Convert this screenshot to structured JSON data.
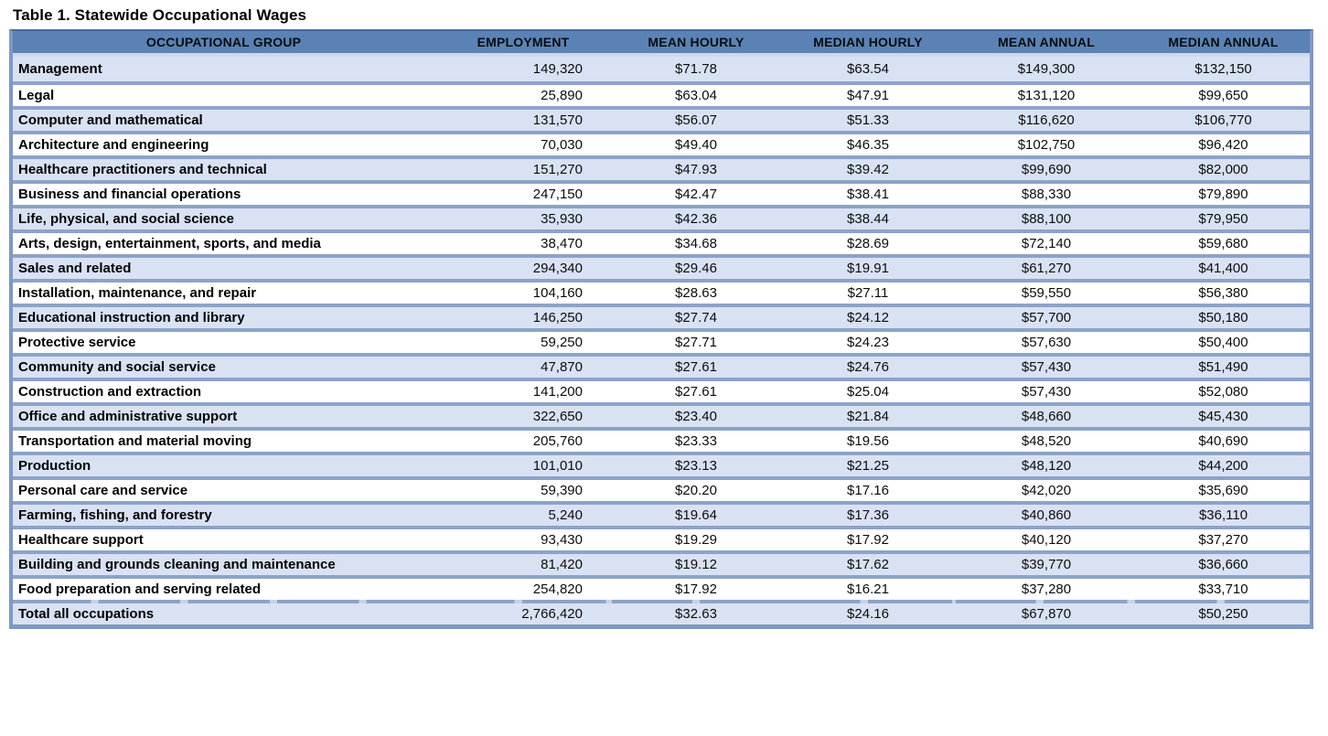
{
  "title": "Table 1. Statewide Occupational Wages",
  "colors": {
    "header_fill": "#5B82B5",
    "header_text": "#0b0b0b",
    "alt_row_fill": "#D9E2F3",
    "row_fill": "#ffffff",
    "separator": "#8CA3C9",
    "outer_border": "#7E99C3"
  },
  "table": {
    "columns": [
      "OCCUPATIONAL GROUP",
      "EMPLOYMENT",
      "MEAN HOURLY",
      "MEDIAN HOURLY",
      "MEAN ANNUAL",
      "MEDIAN ANNUAL"
    ],
    "rows": [
      {
        "label": "Management",
        "employment": "149,320",
        "mean_hourly": "$71.78",
        "median_hourly": "$63.54",
        "mean_annual": "$149,300",
        "median_annual": "$132,150"
      },
      {
        "label": "Legal",
        "employment": "25,890",
        "mean_hourly": "$63.04",
        "median_hourly": "$47.91",
        "mean_annual": "$131,120",
        "median_annual": "$99,650"
      },
      {
        "label": "Computer and mathematical",
        "employment": "131,570",
        "mean_hourly": "$56.07",
        "median_hourly": "$51.33",
        "mean_annual": "$116,620",
        "median_annual": "$106,770"
      },
      {
        "label": "Architecture and engineering",
        "employment": "70,030",
        "mean_hourly": "$49.40",
        "median_hourly": "$46.35",
        "mean_annual": "$102,750",
        "median_annual": "$96,420"
      },
      {
        "label": "Healthcare practitioners and technical",
        "employment": "151,270",
        "mean_hourly": "$47.93",
        "median_hourly": "$39.42",
        "mean_annual": "$99,690",
        "median_annual": "$82,000"
      },
      {
        "label": "Business and financial operations",
        "employment": "247,150",
        "mean_hourly": "$42.47",
        "median_hourly": "$38.41",
        "mean_annual": "$88,330",
        "median_annual": "$79,890"
      },
      {
        "label": "Life, physical, and social science",
        "employment": "35,930",
        "mean_hourly": "$42.36",
        "median_hourly": "$38.44",
        "mean_annual": "$88,100",
        "median_annual": "$79,950"
      },
      {
        "label": "Arts, design, entertainment, sports, and media",
        "employment": "38,470",
        "mean_hourly": "$34.68",
        "median_hourly": "$28.69",
        "mean_annual": "$72,140",
        "median_annual": "$59,680"
      },
      {
        "label": "Sales and related",
        "employment": "294,340",
        "mean_hourly": "$29.46",
        "median_hourly": "$19.91",
        "mean_annual": "$61,270",
        "median_annual": "$41,400"
      },
      {
        "label": "Installation, maintenance, and repair",
        "employment": "104,160",
        "mean_hourly": "$28.63",
        "median_hourly": "$27.11",
        "mean_annual": "$59,550",
        "median_annual": "$56,380"
      },
      {
        "label": "Educational instruction and library",
        "employment": "146,250",
        "mean_hourly": "$27.74",
        "median_hourly": "$24.12",
        "mean_annual": "$57,700",
        "median_annual": "$50,180"
      },
      {
        "label": "Protective service",
        "employment": "59,250",
        "mean_hourly": "$27.71",
        "median_hourly": "$24.23",
        "mean_annual": "$57,630",
        "median_annual": "$50,400"
      },
      {
        "label": "Community and social service",
        "employment": "47,870",
        "mean_hourly": "$27.61",
        "median_hourly": "$24.76",
        "mean_annual": "$57,430",
        "median_annual": "$51,490"
      },
      {
        "label": "Construction and extraction",
        "employment": "141,200",
        "mean_hourly": "$27.61",
        "median_hourly": "$25.04",
        "mean_annual": "$57,430",
        "median_annual": "$52,080"
      },
      {
        "label": "Office and administrative support",
        "employment": "322,650",
        "mean_hourly": "$23.40",
        "median_hourly": "$21.84",
        "mean_annual": "$48,660",
        "median_annual": "$45,430"
      },
      {
        "label": "Transportation and material moving",
        "employment": "205,760",
        "mean_hourly": "$23.33",
        "median_hourly": "$19.56",
        "mean_annual": "$48,520",
        "median_annual": "$40,690"
      },
      {
        "label": "Production",
        "employment": "101,010",
        "mean_hourly": "$23.13",
        "median_hourly": "$21.25",
        "mean_annual": "$48,120",
        "median_annual": "$44,200"
      },
      {
        "label": "Personal care and service",
        "employment": "59,390",
        "mean_hourly": "$20.20",
        "median_hourly": "$17.16",
        "mean_annual": "$42,020",
        "median_annual": "$35,690"
      },
      {
        "label": "Farming, fishing, and forestry",
        "employment": "5,240",
        "mean_hourly": "$19.64",
        "median_hourly": "$17.36",
        "mean_annual": "$40,860",
        "median_annual": "$36,110"
      },
      {
        "label": "Healthcare support",
        "employment": "93,430",
        "mean_hourly": "$19.29",
        "median_hourly": "$17.92",
        "mean_annual": "$40,120",
        "median_annual": "$37,270"
      },
      {
        "label": "Building and grounds cleaning and maintenance",
        "employment": "81,420",
        "mean_hourly": "$19.12",
        "median_hourly": "$17.62",
        "mean_annual": "$39,770",
        "median_annual": "$36,660"
      },
      {
        "label": "Food preparation and serving related",
        "employment": "254,820",
        "mean_hourly": "$17.92",
        "median_hourly": "$16.21",
        "mean_annual": "$37,280",
        "median_annual": "$33,710"
      }
    ],
    "total": {
      "label": "Total all occupations",
      "employment": "2,766,420",
      "mean_hourly": "$32.63",
      "median_hourly": "$24.16",
      "mean_annual": "$67,870",
      "median_annual": "$50,250"
    }
  }
}
